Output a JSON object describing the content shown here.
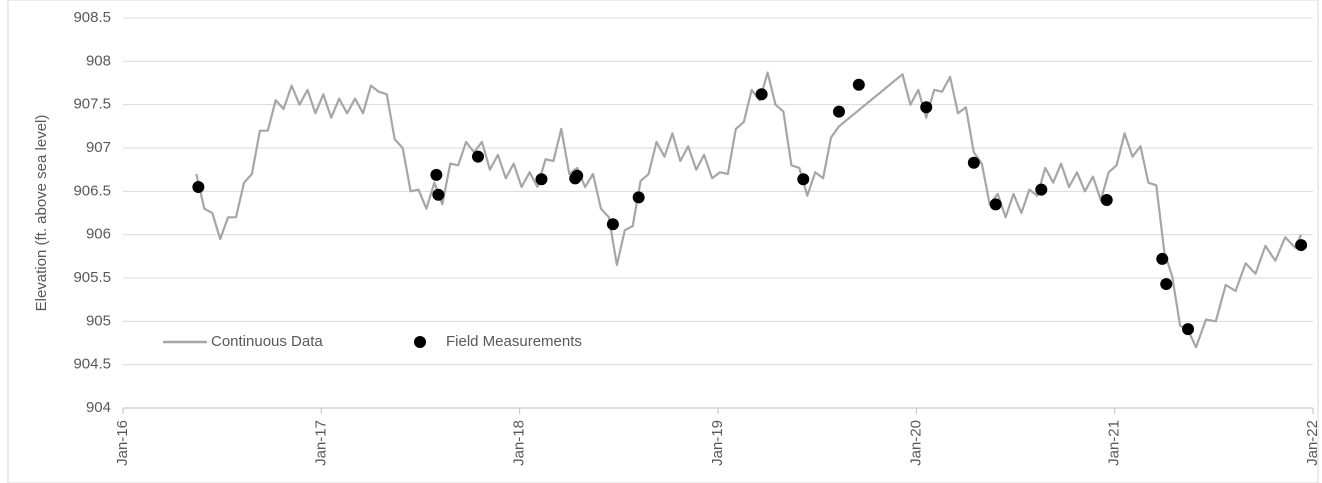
{
  "chart_data": {
    "type": "line",
    "y_label": "Elevation (ft. above sea level)",
    "xlim": [
      2016,
      2022
    ],
    "xticks": [
      {
        "value": 2016,
        "label": "Jan-16"
      },
      {
        "value": 2017,
        "label": "Jan-17"
      },
      {
        "value": 2018,
        "label": "Jan-18"
      },
      {
        "value": 2019,
        "label": "Jan-19"
      },
      {
        "value": 2020,
        "label": "Jan-20"
      },
      {
        "value": 2021,
        "label": "Jan-21"
      },
      {
        "value": 2022,
        "label": "Jan-22"
      }
    ],
    "ylim": [
      904,
      908.5
    ],
    "yticks": [
      904,
      904.5,
      905,
      905.5,
      906,
      906.5,
      907,
      907.5,
      908,
      908.5
    ],
    "grid": true,
    "legend": "lower left",
    "series": [
      {
        "name": "Continuous Data",
        "color": "#a6a6a6",
        "style": "line",
        "x": [
          2016.37,
          2016.41,
          2016.45,
          2016.49,
          2016.53,
          2016.57,
          2016.61,
          2016.65,
          2016.69,
          2016.73,
          2016.77,
          2016.81,
          2016.85,
          2016.89,
          2016.93,
          2016.97,
          2017.01,
          2017.05,
          2017.09,
          2017.13,
          2017.17,
          2017.21,
          2017.25,
          2017.29,
          2017.33,
          2017.37,
          2017.41,
          2017.45,
          2017.49,
          2017.53,
          2017.57,
          2017.61,
          2017.65,
          2017.69,
          2017.73,
          2017.77,
          2017.81,
          2017.85,
          2017.89,
          2017.93,
          2017.97,
          2018.01,
          2018.05,
          2018.09,
          2018.13,
          2018.17,
          2018.21,
          2018.25,
          2018.29,
          2018.33,
          2018.37,
          2018.41,
          2018.45,
          2018.49,
          2018.53,
          2018.57,
          2018.61,
          2018.65,
          2018.69,
          2018.73,
          2018.77,
          2018.81,
          2018.85,
          2018.89,
          2018.93,
          2018.97,
          2019.01,
          2019.05,
          2019.09,
          2019.13,
          2019.17,
          2019.21,
          2019.25,
          2019.29,
          2019.33,
          2019.37,
          2019.41,
          2019.45,
          2019.49,
          2019.53,
          2019.57,
          2019.61,
          2019.93,
          2019.97,
          2020.01,
          2020.05,
          2020.09,
          2020.13,
          2020.17,
          2020.21,
          2020.25,
          2020.29,
          2020.33,
          2020.37,
          2020.41,
          2020.45,
          2020.49,
          2020.53,
          2020.57,
          2020.61,
          2020.65,
          2020.69,
          2020.73,
          2020.77,
          2020.81,
          2020.85,
          2020.89,
          2020.93,
          2020.97,
          2021.01,
          2021.05,
          2021.09,
          2021.13,
          2021.17,
          2021.21,
          2021.25,
          2021.29,
          2021.33,
          2021.37,
          2021.41,
          2021.46,
          2021.51,
          2021.56,
          2021.61,
          2021.66,
          2021.71,
          2021.76,
          2021.81,
          2021.86,
          2021.91,
          2021.94
        ],
        "values": [
          906.7,
          906.3,
          906.25,
          905.95,
          906.2,
          906.2,
          906.6,
          906.7,
          907.2,
          907.2,
          907.55,
          907.45,
          907.72,
          907.5,
          907.67,
          907.4,
          907.62,
          907.35,
          907.57,
          907.4,
          907.57,
          907.4,
          907.72,
          907.65,
          907.62,
          907.1,
          907.0,
          906.5,
          906.52,
          906.3,
          906.6,
          906.35,
          906.82,
          906.8,
          907.07,
          906.95,
          907.07,
          906.75,
          906.92,
          906.65,
          906.82,
          906.55,
          906.72,
          906.55,
          906.87,
          906.85,
          907.22,
          906.7,
          906.77,
          906.55,
          906.7,
          906.3,
          906.2,
          905.65,
          906.05,
          906.1,
          906.62,
          906.7,
          907.07,
          906.9,
          907.17,
          906.85,
          907.02,
          906.75,
          906.92,
          906.65,
          906.72,
          906.7,
          907.22,
          907.3,
          907.67,
          907.55,
          907.87,
          907.5,
          907.42,
          906.8,
          906.77,
          906.45,
          906.72,
          906.65,
          907.12,
          907.25,
          907.85,
          907.5,
          907.67,
          907.35,
          907.67,
          907.65,
          907.82,
          907.4,
          907.47,
          906.95,
          906.82,
          906.35,
          906.47,
          906.2,
          906.47,
          906.25,
          906.52,
          906.45,
          906.77,
          906.6,
          906.82,
          906.55,
          906.72,
          906.5,
          906.67,
          906.4,
          906.72,
          906.8,
          907.17,
          906.9,
          907.02,
          906.6,
          906.57,
          905.8,
          905.52,
          904.95,
          904.9,
          904.7,
          905.02,
          905.0,
          905.42,
          905.35,
          905.67,
          905.55,
          905.87,
          905.7,
          905.97,
          905.85,
          906.0
        ]
      },
      {
        "name": "Field Measurements",
        "color": "#000000",
        "style": "marker",
        "x": [
          2016.38,
          2017.58,
          2017.59,
          2017.79,
          2018.11,
          2018.28,
          2018.29,
          2018.47,
          2018.6,
          2019.22,
          2019.43,
          2019.61,
          2019.71,
          2020.05,
          2020.29,
          2020.4,
          2020.63,
          2020.96,
          2021.24,
          2021.26,
          2021.37,
          2021.94
        ],
        "values": [
          906.55,
          906.69,
          906.46,
          906.9,
          906.64,
          906.65,
          906.68,
          906.12,
          906.43,
          907.62,
          906.64,
          907.42,
          907.73,
          907.47,
          906.83,
          906.35,
          906.52,
          906.4,
          905.72,
          905.43,
          904.91,
          905.88
        ]
      }
    ]
  }
}
